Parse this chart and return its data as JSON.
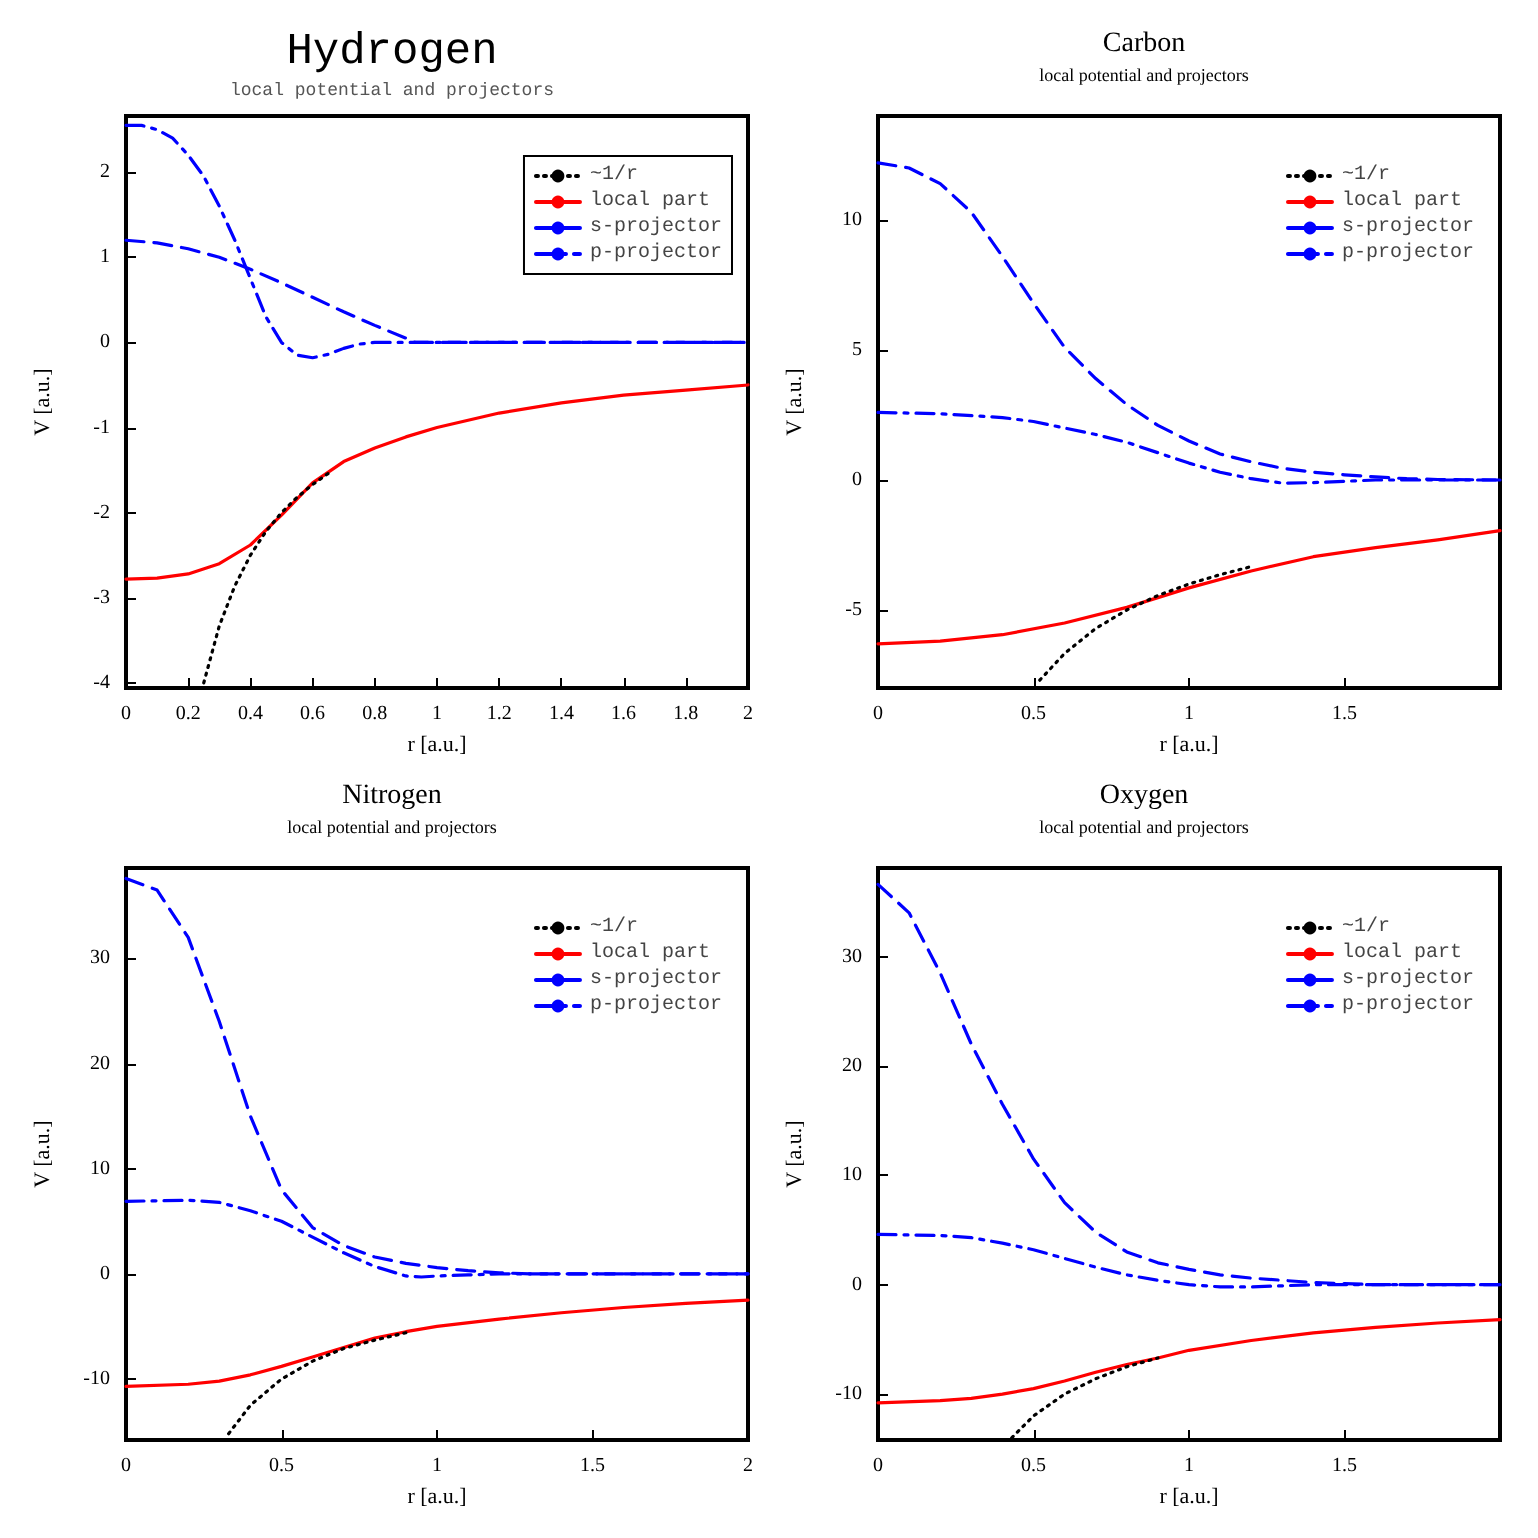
{
  "chart_data": [
    {
      "type": "line",
      "title": "Hydrogen",
      "subtitle": "local potential and projectors",
      "xlabel": "r [a.u.]",
      "ylabel": "V [a.u.]",
      "xlim": [
        0,
        2
      ],
      "xticks": [
        0,
        0.2,
        0.4,
        0.6,
        0.8,
        1,
        1.2,
        1.4,
        1.6,
        1.8,
        2
      ],
      "ylim": [
        -4.06,
        2.66
      ],
      "yticks": [
        -4,
        -3,
        -2,
        -1,
        0,
        1,
        2
      ],
      "grid": false,
      "legend": "top right",
      "marker": "none",
      "series": [
        {
          "name": "~1/r",
          "color": "#000000",
          "line_style": "dotted",
          "x": [
            0.25,
            0.3,
            0.35,
            0.4,
            0.45,
            0.5,
            0.55,
            0.6,
            0.65
          ],
          "values": [
            -4,
            -3.33,
            -2.86,
            -2.5,
            -2.22,
            -2,
            -1.82,
            -1.67,
            -1.54
          ]
        },
        {
          "name": "local part",
          "color": "#ff0000",
          "line_style": "solid",
          "x": [
            0,
            0.1,
            0.2,
            0.3,
            0.4,
            0.5,
            0.6,
            0.7,
            0.8,
            0.9,
            1,
            1.2,
            1.4,
            1.6,
            1.8,
            2
          ],
          "values": [
            -2.78,
            -2.77,
            -2.72,
            -2.6,
            -2.38,
            -2.03,
            -1.65,
            -1.4,
            -1.24,
            -1.11,
            -1,
            -0.83,
            -0.71,
            -0.62,
            -0.56,
            -0.5
          ]
        },
        {
          "name": "s-projector",
          "color": "#0000ff",
          "line_style": "dashed",
          "x": [
            0,
            0.1,
            0.2,
            0.3,
            0.4,
            0.5,
            0.6,
            0.7,
            0.8,
            0.9,
            0.93,
            1,
            2
          ],
          "values": [
            1.2,
            1.17,
            1.1,
            1,
            0.86,
            0.7,
            0.53,
            0.36,
            0.2,
            0.05,
            0,
            0,
            0
          ]
        },
        {
          "name": "p-projector",
          "color": "#0000ff",
          "line_style": "dashdot",
          "x": [
            0,
            0.05,
            0.1,
            0.15,
            0.2,
            0.25,
            0.3,
            0.35,
            0.4,
            0.45,
            0.5,
            0.55,
            0.6,
            0.65,
            0.7,
            0.75,
            0.8,
            1,
            2
          ],
          "values": [
            2.55,
            2.55,
            2.5,
            2.4,
            2.2,
            1.95,
            1.6,
            1.2,
            0.75,
            0.3,
            0,
            -0.15,
            -0.18,
            -0.14,
            -0.07,
            -0.02,
            0,
            0,
            0
          ]
        }
      ]
    },
    {
      "type": "line",
      "title": "Carbon",
      "subtitle": "local potential and projectors",
      "xlabel": "r [a.u.]",
      "ylabel": "V [a.u.]",
      "xlim": [
        0,
        2
      ],
      "xticks": [
        0,
        0.5,
        1,
        1.5
      ],
      "ylim": [
        -8,
        14
      ],
      "yticks": [
        -5,
        0,
        5,
        10
      ],
      "grid": false,
      "legend": "top right",
      "marker": "none",
      "series": [
        {
          "name": "~1/r",
          "color": "#000000",
          "line_style": "dotted",
          "x": [
            0.52,
            0.6,
            0.7,
            0.8,
            0.9,
            1,
            1.1,
            1.2
          ],
          "values": [
            -7.7,
            -6.67,
            -5.71,
            -5,
            -4.44,
            -4,
            -3.64,
            -3.33
          ]
        },
        {
          "name": "local part",
          "color": "#ff0000",
          "line_style": "solid",
          "x": [
            0,
            0.2,
            0.4,
            0.6,
            0.8,
            1,
            1.2,
            1.4,
            1.6,
            1.8,
            2
          ],
          "values": [
            -6.3,
            -6.2,
            -5.95,
            -5.5,
            -4.9,
            -4.15,
            -3.5,
            -2.95,
            -2.6,
            -2.3,
            -1.95
          ]
        },
        {
          "name": "s-projector",
          "color": "#0000ff",
          "line_style": "dashed",
          "x": [
            0,
            0.1,
            0.2,
            0.3,
            0.4,
            0.5,
            0.6,
            0.7,
            0.8,
            0.9,
            1,
            1.1,
            1.2,
            1.3,
            1.4,
            1.5,
            1.6,
            1.7,
            1.8,
            2
          ],
          "values": [
            12.2,
            12,
            11.4,
            10.3,
            8.6,
            6.8,
            5.1,
            3.9,
            2.9,
            2.1,
            1.5,
            1,
            0.7,
            0.45,
            0.3,
            0.2,
            0.12,
            0.05,
            0.02,
            0
          ]
        },
        {
          "name": "p-projector",
          "color": "#0000ff",
          "line_style": "dashdot",
          "x": [
            0,
            0.2,
            0.4,
            0.5,
            0.6,
            0.7,
            0.8,
            0.9,
            1,
            1.1,
            1.2,
            1.3,
            1.4,
            1.5,
            1.6,
            2
          ],
          "values": [
            2.6,
            2.55,
            2.4,
            2.25,
            2,
            1.75,
            1.45,
            1.05,
            0.65,
            0.3,
            0.05,
            -0.12,
            -0.1,
            -0.05,
            0,
            0
          ]
        }
      ]
    },
    {
      "type": "line",
      "title": "Nitrogen",
      "subtitle": "local potential and projectors",
      "xlabel": "r [a.u.]",
      "ylabel": "V [a.u.]",
      "xlim": [
        0,
        2
      ],
      "xticks": [
        0,
        0.5,
        1,
        1.5,
        2
      ],
      "ylim": [
        -15.8,
        38.6
      ],
      "yticks": [
        -10,
        0,
        10,
        20,
        30
      ],
      "grid": false,
      "legend": "top right",
      "marker": "none",
      "series": [
        {
          "name": "~1/r",
          "color": "#000000",
          "line_style": "dotted",
          "x": [
            0.33,
            0.4,
            0.5,
            0.6,
            0.7,
            0.8,
            0.9
          ],
          "values": [
            -15.2,
            -12.5,
            -10,
            -8.3,
            -7.1,
            -6.3,
            -5.6
          ]
        },
        {
          "name": "local part",
          "color": "#ff0000",
          "line_style": "solid",
          "x": [
            0,
            0.2,
            0.3,
            0.4,
            0.5,
            0.6,
            0.7,
            0.8,
            0.9,
            1,
            1.2,
            1.4,
            1.6,
            1.8,
            2
          ],
          "values": [
            -10.7,
            -10.5,
            -10.2,
            -9.6,
            -8.8,
            -7.9,
            -7,
            -6.1,
            -5.5,
            -5,
            -4.3,
            -3.7,
            -3.2,
            -2.8,
            -2.5
          ]
        },
        {
          "name": "s-projector",
          "color": "#0000ff",
          "line_style": "dashed",
          "x": [
            0,
            0.1,
            0.2,
            0.3,
            0.4,
            0.5,
            0.6,
            0.7,
            0.8,
            0.9,
            1,
            1.1,
            1.2,
            1.3,
            2
          ],
          "values": [
            37.6,
            36.5,
            32,
            24,
            15,
            8,
            4.4,
            2.7,
            1.6,
            1,
            0.6,
            0.3,
            0.1,
            0,
            0
          ]
        },
        {
          "name": "p-projector",
          "color": "#0000ff",
          "line_style": "dashdot",
          "x": [
            0,
            0.2,
            0.3,
            0.4,
            0.5,
            0.6,
            0.7,
            0.8,
            0.9,
            0.95,
            1,
            1.1,
            1.2,
            2
          ],
          "values": [
            6.9,
            7,
            6.8,
            6,
            5,
            3.5,
            2,
            0.7,
            -0.2,
            -0.3,
            -0.2,
            -0.1,
            0,
            0
          ]
        }
      ]
    },
    {
      "type": "line",
      "title": "Oxygen",
      "subtitle": "local potential and projectors",
      "xlabel": "r [a.u.]",
      "ylabel": "V [a.u.]",
      "xlim": [
        0,
        2
      ],
      "xticks": [
        0,
        0.5,
        1,
        1.5
      ],
      "ylim": [
        -14.2,
        38.1
      ],
      "yticks": [
        -10,
        0,
        10,
        20,
        30
      ],
      "grid": false,
      "legend": "top right",
      "marker": "none",
      "series": [
        {
          "name": "~1/r",
          "color": "#000000",
          "line_style": "dotted",
          "x": [
            0.43,
            0.5,
            0.6,
            0.7,
            0.8,
            0.9
          ],
          "values": [
            -14,
            -12,
            -10,
            -8.6,
            -7.5,
            -6.7
          ]
        },
        {
          "name": "local part",
          "color": "#ff0000",
          "line_style": "solid",
          "x": [
            0,
            0.2,
            0.3,
            0.4,
            0.5,
            0.6,
            0.7,
            0.8,
            0.9,
            1,
            1.2,
            1.4,
            1.6,
            1.8,
            2
          ],
          "values": [
            -10.8,
            -10.6,
            -10.4,
            -10,
            -9.5,
            -8.8,
            -8,
            -7.3,
            -6.7,
            -6,
            -5.1,
            -4.4,
            -3.9,
            -3.5,
            -3.2
          ]
        },
        {
          "name": "s-projector",
          "color": "#0000ff",
          "line_style": "dashed",
          "x": [
            0,
            0.1,
            0.2,
            0.3,
            0.4,
            0.5,
            0.6,
            0.7,
            0.8,
            0.9,
            1,
            1.1,
            1.2,
            1.3,
            1.4,
            1.5,
            1.6,
            2
          ],
          "values": [
            36.6,
            34,
            28.5,
            22,
            16.5,
            11.5,
            7.5,
            4.8,
            3,
            2,
            1.4,
            0.9,
            0.6,
            0.4,
            0.2,
            0.1,
            0,
            0
          ]
        },
        {
          "name": "p-projector",
          "color": "#0000ff",
          "line_style": "dashdot",
          "x": [
            0,
            0.2,
            0.3,
            0.4,
            0.5,
            0.6,
            0.7,
            0.8,
            0.9,
            1,
            1.1,
            1.2,
            1.3,
            1.4,
            2
          ],
          "values": [
            4.6,
            4.5,
            4.3,
            3.8,
            3.2,
            2.4,
            1.6,
            0.9,
            0.4,
            0,
            -0.2,
            -0.2,
            -0.1,
            0,
            0
          ]
        }
      ]
    }
  ]
}
